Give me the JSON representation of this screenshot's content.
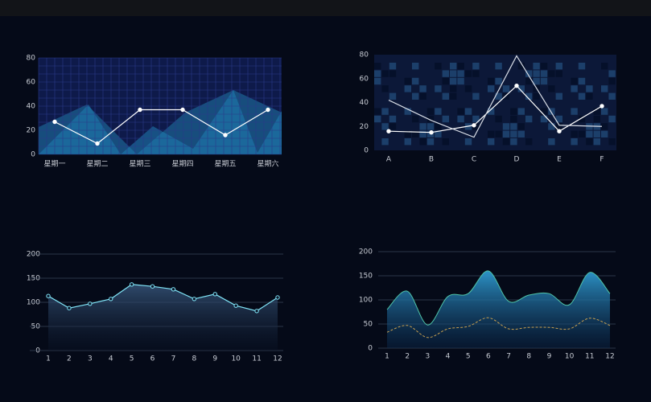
{
  "chart_data": [
    {
      "type": "line",
      "categories": [
        "星期一",
        "星期二",
        "星期三",
        "星期四",
        "星期五",
        "星期六"
      ],
      "series": [
        {
          "color": "#ffffff",
          "values": [
            27,
            9,
            37,
            37,
            16,
            37
          ],
          "markers": true
        }
      ],
      "ylim": [
        0,
        80
      ],
      "yticks": [
        0,
        20,
        40,
        60,
        80
      ],
      "grid": true
    },
    {
      "type": "line",
      "categories": [
        "A",
        "B",
        "C",
        "D",
        "E",
        "F"
      ],
      "series": [
        {
          "color": "#ffffff",
          "values": [
            16,
            15,
            21,
            54,
            16,
            37
          ],
          "markers": true
        },
        {
          "color": "#d8dde6",
          "values": [
            42,
            25,
            11,
            79,
            21,
            20
          ],
          "markers": false
        }
      ],
      "ylim": [
        0,
        80
      ],
      "yticks": [
        0,
        20,
        40,
        60,
        80
      ],
      "grid": true
    },
    {
      "type": "area",
      "x": [
        1,
        2,
        3,
        4,
        5,
        6,
        7,
        8,
        9,
        10,
        11,
        12
      ],
      "series": [
        {
          "color": "#7fe3f5",
          "values": [
            113,
            88,
            97,
            107,
            137,
            133,
            127,
            107,
            117,
            93,
            82,
            110
          ],
          "markers": true
        }
      ],
      "ylim": [
        0,
        200
      ],
      "yticks": [
        0,
        50,
        100,
        150,
        200
      ],
      "grid": true
    },
    {
      "type": "smooth-area",
      "x": [
        1,
        2,
        3,
        4,
        5,
        6,
        7,
        8,
        9,
        10,
        11,
        12
      ],
      "series": [
        {
          "color": "#2a8fc4",
          "values": [
            80,
            118,
            48,
            107,
            113,
            160,
            97,
            110,
            113,
            90,
            157,
            113
          ],
          "fill": true
        },
        {
          "color": "#c8a050",
          "values": [
            33,
            47,
            22,
            40,
            45,
            63,
            40,
            43,
            43,
            40,
            62,
            47
          ],
          "fill": false
        }
      ],
      "ylim": [
        0,
        200
      ],
      "yticks": [
        0,
        50,
        100,
        150,
        200
      ],
      "grid": true
    }
  ]
}
